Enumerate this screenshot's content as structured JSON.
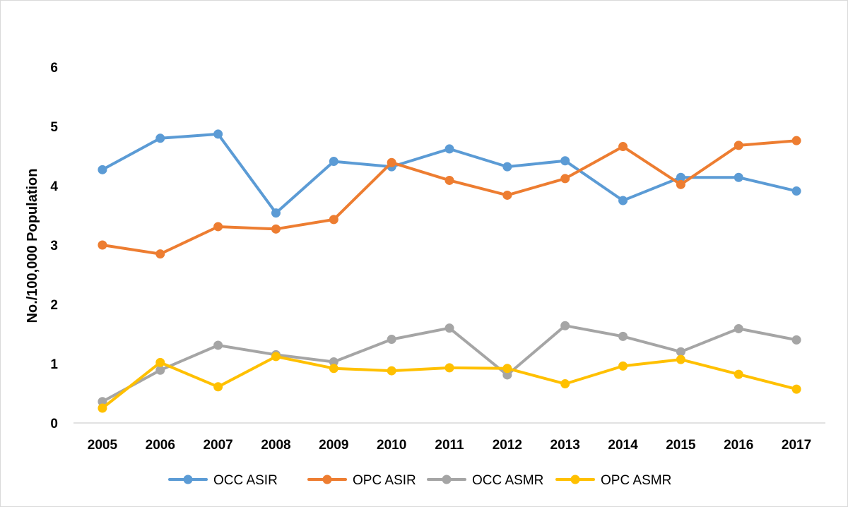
{
  "chart_data": {
    "type": "line",
    "title": "",
    "xlabel": "",
    "ylabel": "No./100,000 Population",
    "ylim": [
      0,
      6
    ],
    "yticks": [
      0,
      1,
      2,
      3,
      4,
      5,
      6
    ],
    "grid": false,
    "legend_position": "bottom",
    "categories": [
      "2005",
      "2006",
      "2007",
      "2008",
      "2009",
      "2010",
      "2011",
      "2012",
      "2013",
      "2014",
      "2015",
      "2016",
      "2017"
    ],
    "series": [
      {
        "name": "OCC ASIR",
        "color": "#5b9bd5",
        "values": [
          4.27,
          4.8,
          4.87,
          3.54,
          4.41,
          4.32,
          4.62,
          4.32,
          4.42,
          3.75,
          4.14,
          4.14,
          3.91
        ]
      },
      {
        "name": "OPC ASIR",
        "color": "#ed7d31",
        "values": [
          3.0,
          2.85,
          3.31,
          3.27,
          3.43,
          4.39,
          4.09,
          3.84,
          4.12,
          4.66,
          4.02,
          4.68,
          4.76
        ]
      },
      {
        "name": "OCC ASMR",
        "color": "#a5a5a5",
        "values": [
          0.36,
          0.89,
          1.31,
          1.15,
          1.03,
          1.41,
          1.6,
          0.81,
          1.64,
          1.46,
          1.2,
          1.59,
          1.4
        ]
      },
      {
        "name": "OPC ASMR",
        "color": "#ffc000",
        "values": [
          0.25,
          1.02,
          0.61,
          1.12,
          0.92,
          0.88,
          0.93,
          0.92,
          0.66,
          0.96,
          1.07,
          0.82,
          0.57
        ]
      }
    ]
  }
}
